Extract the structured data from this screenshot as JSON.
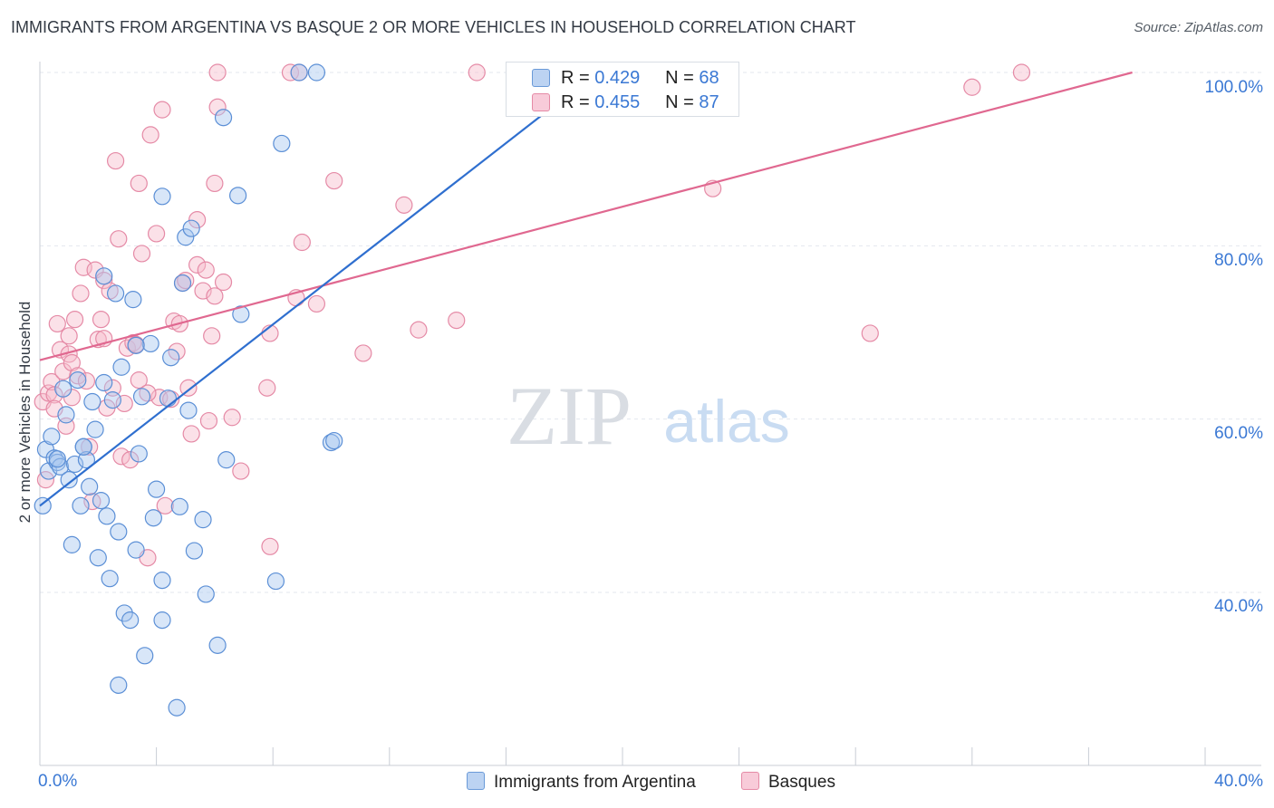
{
  "header": {
    "title": "IMMIGRANTS FROM ARGENTINA VS BASQUE 2 OR MORE VEHICLES IN HOUSEHOLD CORRELATION CHART",
    "source": "Source: ZipAtlas.com"
  },
  "watermark": {
    "zip": "ZIP",
    "atlas": "atlas"
  },
  "colors": {
    "blue_fill": "#a9c8f0",
    "blue_stroke": "#5b8fd6",
    "blue_line": "#2f6fcf",
    "pink_fill": "#f6bccd",
    "pink_stroke": "#e58aa6",
    "pink_line": "#e06890",
    "tick_text": "#3a78d4",
    "grid": "#e3e7ee"
  },
  "legend": {
    "series": [
      {
        "r_label": "R =",
        "r_value": "0.429",
        "n_label": "N =",
        "n_value": "68"
      },
      {
        "r_label": "R =",
        "r_value": "0.455",
        "n_label": "N =",
        "n_value": "87"
      }
    ],
    "bottom": [
      "Immigrants from Argentina",
      "Basques"
    ]
  },
  "chart_data": {
    "type": "scatter",
    "title": "IMMIGRANTS FROM ARGENTINA VS BASQUE 2 OR MORE VEHICLES IN HOUSEHOLD CORRELATION CHART",
    "xlabel": "",
    "ylabel": "2 or more Vehicles in Household",
    "xlim": [
      0,
      40
    ],
    "ylim": [
      22,
      101
    ],
    "x_tick_labels": [
      "0.0%",
      "40.0%"
    ],
    "y_ticks": [
      40,
      60,
      80,
      100
    ],
    "y_tick_labels": [
      "40.0%",
      "60.0%",
      "80.0%",
      "100.0%"
    ],
    "grid": true,
    "series": [
      {
        "name": "Immigrants from Argentina",
        "r": 0.429,
        "n": 68,
        "trendline": {
          "x": [
            0.0,
            19.5
          ],
          "y": [
            50.0,
            101.0
          ]
        },
        "points": [
          [
            0.1,
            50.0
          ],
          [
            0.2,
            56.5
          ],
          [
            0.3,
            54.0
          ],
          [
            0.4,
            58.0
          ],
          [
            0.5,
            55.5
          ],
          [
            0.6,
            55.0
          ],
          [
            0.7,
            54.5
          ],
          [
            0.8,
            63.5
          ],
          [
            0.9,
            60.5
          ],
          [
            1.0,
            53.0
          ],
          [
            1.1,
            45.5
          ],
          [
            1.2,
            54.8
          ],
          [
            1.3,
            64.5
          ],
          [
            1.4,
            50.0
          ],
          [
            1.5,
            56.8
          ],
          [
            1.6,
            55.3
          ],
          [
            1.7,
            52.2
          ],
          [
            1.8,
            62.0
          ],
          [
            2.0,
            44.0
          ],
          [
            2.1,
            50.6
          ],
          [
            2.2,
            76.5
          ],
          [
            2.3,
            48.8
          ],
          [
            2.4,
            41.6
          ],
          [
            2.5,
            62.2
          ],
          [
            2.6,
            74.5
          ],
          [
            2.7,
            47.0
          ],
          [
            2.8,
            66.0
          ],
          [
            2.7,
            29.3
          ],
          [
            2.9,
            37.6
          ],
          [
            3.1,
            36.8
          ],
          [
            3.2,
            73.8
          ],
          [
            3.3,
            44.9
          ],
          [
            3.4,
            56.0
          ],
          [
            3.5,
            62.6
          ],
          [
            3.6,
            32.7
          ],
          [
            3.8,
            68.7
          ],
          [
            3.9,
            48.6
          ],
          [
            4.0,
            51.9
          ],
          [
            4.2,
            41.4
          ],
          [
            4.2,
            36.8
          ],
          [
            4.2,
            85.7
          ],
          [
            4.4,
            62.4
          ],
          [
            4.5,
            67.1
          ],
          [
            4.7,
            26.7
          ],
          [
            4.8,
            49.9
          ],
          [
            4.9,
            75.7
          ],
          [
            5.0,
            81.0
          ],
          [
            5.1,
            61.0
          ],
          [
            5.2,
            82.0
          ],
          [
            5.3,
            44.8
          ],
          [
            5.6,
            48.4
          ],
          [
            5.7,
            39.8
          ],
          [
            6.1,
            33.9
          ],
          [
            6.3,
            94.8
          ],
          [
            6.4,
            55.3
          ],
          [
            6.8,
            85.8
          ],
          [
            6.9,
            72.1
          ],
          [
            8.1,
            41.3
          ],
          [
            8.3,
            91.8
          ],
          [
            8.9,
            100.0
          ],
          [
            9.5,
            100.0
          ],
          [
            10.0,
            57.3
          ],
          [
            10.1,
            57.5
          ],
          [
            2.2,
            64.2
          ],
          [
            1.5,
            56.8
          ],
          [
            0.6,
            55.4
          ],
          [
            3.3,
            68.5
          ],
          [
            1.9,
            58.8
          ]
        ]
      },
      {
        "name": "Basques",
        "r": 0.455,
        "n": 87,
        "trendline": {
          "x": [
            0.0,
            37.5
          ],
          "y": [
            66.8,
            100.0
          ]
        },
        "points": [
          [
            0.1,
            62.0
          ],
          [
            0.2,
            53.0
          ],
          [
            0.3,
            63.0
          ],
          [
            0.4,
            64.3
          ],
          [
            0.5,
            62.8
          ],
          [
            0.6,
            71.0
          ],
          [
            0.7,
            68.0
          ],
          [
            0.8,
            65.5
          ],
          [
            0.9,
            59.2
          ],
          [
            1.0,
            69.6
          ],
          [
            1.0,
            67.5
          ],
          [
            1.1,
            66.5
          ],
          [
            1.2,
            71.5
          ],
          [
            1.3,
            65.0
          ],
          [
            1.4,
            74.5
          ],
          [
            1.5,
            77.5
          ],
          [
            1.6,
            64.4
          ],
          [
            1.7,
            56.8
          ],
          [
            1.8,
            50.5
          ],
          [
            1.9,
            77.2
          ],
          [
            2.0,
            69.2
          ],
          [
            2.1,
            71.5
          ],
          [
            2.2,
            76.0
          ],
          [
            2.3,
            61.3
          ],
          [
            2.4,
            74.8
          ],
          [
            2.5,
            63.6
          ],
          [
            2.6,
            89.8
          ],
          [
            2.7,
            80.8
          ],
          [
            2.8,
            55.7
          ],
          [
            2.9,
            61.8
          ],
          [
            3.0,
            68.2
          ],
          [
            3.1,
            55.3
          ],
          [
            3.2,
            68.8
          ],
          [
            3.3,
            68.6
          ],
          [
            3.4,
            87.2
          ],
          [
            3.4,
            64.5
          ],
          [
            3.5,
            79.1
          ],
          [
            3.7,
            44.0
          ],
          [
            3.8,
            92.8
          ],
          [
            4.0,
            81.4
          ],
          [
            4.1,
            62.5
          ],
          [
            4.2,
            95.7
          ],
          [
            4.3,
            50.0
          ],
          [
            4.5,
            62.3
          ],
          [
            4.6,
            71.3
          ],
          [
            4.7,
            67.8
          ],
          [
            4.8,
            71.0
          ],
          [
            4.9,
            75.7
          ],
          [
            5.0,
            76.0
          ],
          [
            5.1,
            63.6
          ],
          [
            5.2,
            58.3
          ],
          [
            5.4,
            77.8
          ],
          [
            5.4,
            83.0
          ],
          [
            5.6,
            74.8
          ],
          [
            5.7,
            77.2
          ],
          [
            5.8,
            59.8
          ],
          [
            5.9,
            69.6
          ],
          [
            6.0,
            87.2
          ],
          [
            6.0,
            74.2
          ],
          [
            6.1,
            96.0
          ],
          [
            6.1,
            100.0
          ],
          [
            6.3,
            75.8
          ],
          [
            6.6,
            60.2
          ],
          [
            6.9,
            54.0
          ],
          [
            7.8,
            63.6
          ],
          [
            7.9,
            45.3
          ],
          [
            7.9,
            69.9
          ],
          [
            8.8,
            74.0
          ],
          [
            8.6,
            100.0
          ],
          [
            8.9,
            100.0
          ],
          [
            9.0,
            80.4
          ],
          [
            9.5,
            73.3
          ],
          [
            10.1,
            87.5
          ],
          [
            11.1,
            67.6
          ],
          [
            12.5,
            84.7
          ],
          [
            13.0,
            70.3
          ],
          [
            14.3,
            71.4
          ],
          [
            15.0,
            100.0
          ],
          [
            19.5,
            100.0
          ],
          [
            23.1,
            86.6
          ],
          [
            28.5,
            69.9
          ],
          [
            32.0,
            98.3
          ],
          [
            33.7,
            100.0
          ],
          [
            1.1,
            62.5
          ],
          [
            2.2,
            69.3
          ],
          [
            0.5,
            61.2
          ],
          [
            3.7,
            63.0
          ]
        ]
      }
    ]
  }
}
